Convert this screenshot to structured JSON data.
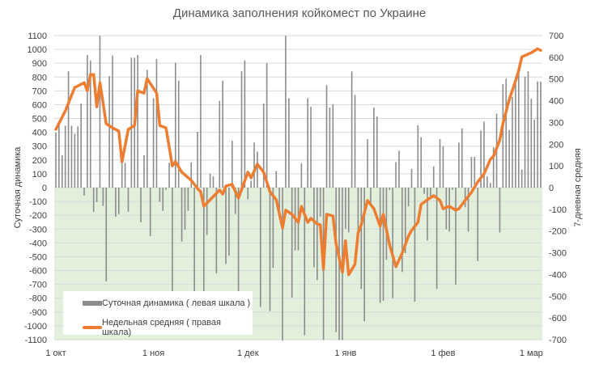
{
  "chart_data": {
    "type": "bar+line",
    "title": "Динамика заполнения койкомест по Украине",
    "ylabel_left": "Суточная динамика",
    "ylabel_right": "7-дневная средняя",
    "ylim_left": [
      -1100,
      1100
    ],
    "ylim_right": [
      -700,
      700
    ],
    "yticks_left": [
      1100,
      1000,
      900,
      800,
      700,
      600,
      500,
      400,
      300,
      200,
      100,
      0,
      -100,
      -200,
      -300,
      -400,
      -500,
      -600,
      -700,
      -800,
      -900,
      -1000,
      -1100
    ],
    "yticks_right": [
      700,
      600,
      500,
      400,
      300,
      200,
      100,
      0,
      -100,
      -200,
      -300,
      -400,
      -500,
      -600,
      -700
    ],
    "xticks": [
      {
        "date": "10-01",
        "label": "1 окт"
      },
      {
        "date": "11-01",
        "label": "1 ноя"
      },
      {
        "date": "12-01",
        "label": "1 дек"
      },
      {
        "date": "01-01",
        "label": "1 янв"
      },
      {
        "date": "02-01",
        "label": "1 фев"
      },
      {
        "date": "03-01",
        "label": "1 мар"
      }
    ],
    "grid": true,
    "negative_zone_color": "#e2efda",
    "legend_position": "bottom-left",
    "series": [
      {
        "name": "Суточная динамика ( левая шкала )",
        "type": "bar",
        "axis": "left",
        "color": "#8c8c8c",
        "start_date": "10-01",
        "values": [
          398,
          468,
          234,
          448,
          842,
          448,
          390,
          442,
          608,
          -58,
          959,
          920,
          -175,
          -105,
          1099,
          -133,
          -678,
          807,
          955,
          -210,
          -191,
          179,
          179,
          -175,
          940,
          940,
          959,
          -250,
          234,
          852,
          -351,
          647,
          930,
          -103,
          -168,
          -16,
          179,
          -752,
          904,
          774,
          -390,
          -304,
          -168,
          183,
          -752,
          404,
          959,
          -752,
          -343,
          101,
          82,
          -620,
          628,
          774,
          -552,
          -493,
          339,
          -191,
          -752,
          842,
          920,
          -84,
          50,
          326,
          261,
          -864,
          608,
          901,
          -893,
          -581,
          121,
          -200,
          -1107,
          1099,
          647,
          -795,
          -454,
          -454,
          175,
          -1068,
          647,
          585,
          -577,
          -669,
          -210,
          -1103,
          741,
          579,
          604,
          -1045,
          -1103,
          -1103,
          -298,
          -324,
          842,
          671,
          -400,
          -733,
          -967,
          351,
          -120,
          579,
          515,
          -834,
          -819,
          -522,
          -16,
          -799,
          185,
          267,
          -610,
          -474,
          -136,
          136,
          -825,
          452,
          365,
          -45,
          -382,
          -64,
          154,
          -733,
          351,
          300,
          -302,
          -318,
          -16,
          -702,
          326,
          429,
          -142,
          -318,
          222,
          222,
          -532,
          413,
          478,
          82,
          33,
          292,
          536,
          -324,
          749,
          788,
          417,
          657,
          803,
          832,
          131,
          803,
          842,
          643,
          491,
          768,
          768
        ]
      },
      {
        "name": "Недельная средняя ( правая шкала)",
        "type": "line",
        "axis": "right",
        "color": "#ed7d31",
        "points": [
          [
            "10-01",
            268
          ],
          [
            "10-04",
            353
          ],
          [
            "10-07",
            461
          ],
          [
            "10-10",
            483
          ],
          [
            "10-11",
            446
          ],
          [
            "10-12",
            520
          ],
          [
            "10-13",
            520
          ],
          [
            "10-14",
            372
          ],
          [
            "10-15",
            483
          ],
          [
            "10-17",
            294
          ],
          [
            "10-19",
            275
          ],
          [
            "10-21",
            260
          ],
          [
            "10-22",
            119
          ],
          [
            "10-24",
            268
          ],
          [
            "10-26",
            286
          ],
          [
            "10-27",
            446
          ],
          [
            "10-29",
            435
          ],
          [
            "10-30",
            502
          ],
          [
            "11-02",
            435
          ],
          [
            "11-03",
            286
          ],
          [
            "11-05",
            275
          ],
          [
            "11-07",
            100
          ],
          [
            "11-08",
            119
          ],
          [
            "11-10",
            71
          ],
          [
            "11-13",
            33
          ],
          [
            "11-15",
            -4
          ],
          [
            "11-16",
            -19
          ],
          [
            "11-17",
            -86
          ],
          [
            "11-19",
            -56
          ],
          [
            "11-22",
            -11
          ],
          [
            "11-23",
            -30
          ],
          [
            "11-24",
            7
          ],
          [
            "11-26",
            15
          ],
          [
            "11-28",
            -48
          ],
          [
            "12-01",
            71
          ],
          [
            "12-02",
            45
          ],
          [
            "12-04",
            108
          ],
          [
            "12-06",
            71
          ],
          [
            "12-08",
            -19
          ],
          [
            "12-10",
            -56
          ],
          [
            "12-12",
            -186
          ],
          [
            "12-13",
            -104
          ],
          [
            "12-15",
            -123
          ],
          [
            "12-17",
            -160
          ],
          [
            "12-18",
            -86
          ],
          [
            "12-20",
            -160
          ],
          [
            "12-21",
            -141
          ],
          [
            "12-23",
            -167
          ],
          [
            "12-24",
            -171
          ],
          [
            "12-25",
            -375
          ],
          [
            "12-26",
            -123
          ],
          [
            "12-28",
            -130
          ],
          [
            "12-29",
            -260
          ],
          [
            "12-31",
            -390
          ],
          [
            "01-01",
            -245
          ],
          [
            "01-02",
            -401
          ],
          [
            "01-04",
            -353
          ],
          [
            "01-05",
            -208
          ],
          [
            "01-06",
            -171
          ],
          [
            "01-08",
            -59
          ],
          [
            "01-10",
            -97
          ],
          [
            "01-12",
            -178
          ],
          [
            "01-13",
            -123
          ],
          [
            "01-15",
            -264
          ],
          [
            "01-17",
            -364
          ],
          [
            "01-19",
            -301
          ],
          [
            "01-21",
            -223
          ],
          [
            "01-22",
            -197
          ],
          [
            "01-24",
            -160
          ],
          [
            "01-25",
            -78
          ],
          [
            "01-27",
            -56
          ],
          [
            "01-29",
            -37
          ],
          [
            "01-31",
            -59
          ],
          [
            "02-01",
            -97
          ],
          [
            "02-03",
            -86
          ],
          [
            "02-05",
            -104
          ],
          [
            "02-06",
            -97
          ],
          [
            "02-08",
            -59
          ],
          [
            "02-10",
            -22
          ],
          [
            "02-12",
            26
          ],
          [
            "02-13",
            45
          ],
          [
            "02-14",
            63
          ],
          [
            "02-16",
            130
          ],
          [
            "02-17",
            145
          ],
          [
            "02-19",
            219
          ],
          [
            "02-20",
            294
          ],
          [
            "02-22",
            405
          ],
          [
            "02-24",
            491
          ],
          [
            "02-25",
            539
          ],
          [
            "02-26",
            602
          ],
          [
            "03-01",
            621
          ],
          [
            "03-03",
            639
          ],
          [
            "03-04",
            632
          ]
        ]
      }
    ]
  }
}
